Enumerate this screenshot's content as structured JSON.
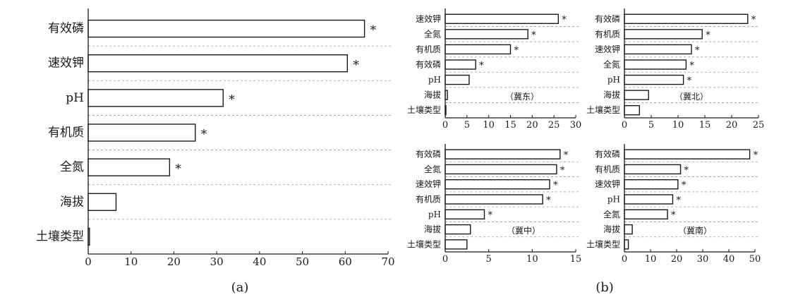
{
  "panel_labels": {
    "a": "(a)",
    "b": "(b)"
  },
  "chart_data": [
    {
      "type": "bar",
      "orientation": "horizontal",
      "categories": [
        "有效磷",
        "速效钾",
        "pH",
        "有机质",
        "全氮",
        "海拔",
        "土壤类型"
      ],
      "values": [
        64.5,
        60.5,
        31.5,
        25,
        19,
        6.5,
        0.3
      ],
      "significant": [
        true,
        true,
        true,
        true,
        true,
        false,
        false
      ],
      "xlim": [
        0,
        70
      ],
      "xticks": [
        "0",
        "10",
        "20",
        "30",
        "40",
        "50",
        "60",
        "70"
      ],
      "region_label": "",
      "grid": "dashed separators between categories"
    },
    {
      "type": "bar",
      "orientation": "horizontal",
      "categories": [
        "速效钾",
        "全氮",
        "有机质",
        "有效磷",
        "pH",
        "海拔",
        "土壤类型"
      ],
      "values": [
        26,
        19,
        15,
        7,
        5.5,
        0.5,
        0.1
      ],
      "significant": [
        true,
        true,
        true,
        true,
        false,
        false,
        false
      ],
      "xlim": [
        0,
        30
      ],
      "xticks": [
        "0",
        "5",
        "10",
        "15",
        "20",
        "25",
        "30"
      ],
      "region_label": "（冀东）"
    },
    {
      "type": "bar",
      "orientation": "horizontal",
      "categories": [
        "有效磷",
        "有机质",
        "速效钾",
        "全氮",
        "pH",
        "海拔",
        "土壤类型"
      ],
      "values": [
        23,
        14.5,
        12.5,
        11.5,
        11,
        4.5,
        2.8
      ],
      "significant": [
        true,
        true,
        true,
        true,
        true,
        false,
        false
      ],
      "xlim": [
        0,
        25
      ],
      "xticks": [
        "0",
        "5",
        "10",
        "15",
        "20",
        "25"
      ],
      "region_label": "（冀北）"
    },
    {
      "type": "bar",
      "orientation": "horizontal",
      "categories": [
        "有效磷",
        "全氮",
        "速效钾",
        "有机质",
        "pH",
        "海拔",
        "土壤类型"
      ],
      "values": [
        13.2,
        12.8,
        12,
        11.2,
        4.5,
        2.9,
        2.5
      ],
      "significant": [
        true,
        true,
        true,
        true,
        true,
        false,
        false
      ],
      "xlim": [
        0,
        15
      ],
      "xticks": [
        "0",
        "5",
        "10",
        "15"
      ],
      "region_label": "（冀中）"
    },
    {
      "type": "bar",
      "orientation": "horizontal",
      "categories": [
        "有效磷",
        "有机质",
        "速效钾",
        "pH",
        "全氮",
        "海拔",
        "土壤类型"
      ],
      "values": [
        48,
        21.5,
        20.5,
        18.5,
        16.5,
        3,
        1.5
      ],
      "significant": [
        true,
        true,
        true,
        true,
        true,
        false,
        false
      ],
      "xlim": [
        0,
        50
      ],
      "xticks": [
        "0",
        "10",
        "20",
        "30",
        "40",
        "50"
      ],
      "region_label": "（冀南）"
    }
  ]
}
